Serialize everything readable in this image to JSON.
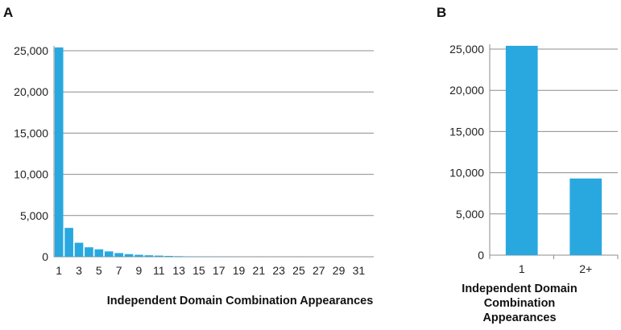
{
  "chart_data": [
    {
      "panel": "A",
      "type": "bar",
      "title": "",
      "xlabel": "Independent Domain Combination Appearances",
      "ylabel": "",
      "ylim": [
        0,
        25000
      ],
      "yticks": [
        0,
        5000,
        10000,
        15000,
        20000,
        25000
      ],
      "ytick_labels": [
        "0",
        "5,000",
        "10,000",
        "15,000",
        "20,000",
        "25,000"
      ],
      "categories": [
        "1",
        "2",
        "3",
        "4",
        "5",
        "6",
        "7",
        "8",
        "9",
        "10",
        "11",
        "12",
        "13",
        "14",
        "15",
        "16",
        "17",
        "18",
        "19",
        "20",
        "21",
        "22",
        "23",
        "24",
        "25",
        "26",
        "27",
        "28",
        "29",
        "30",
        "31",
        "32"
      ],
      "xtick_labels": [
        "1",
        "3",
        "5",
        "7",
        "9",
        "11",
        "13",
        "15",
        "17",
        "19",
        "21",
        "23",
        "25",
        "27",
        "29",
        "31"
      ],
      "values": [
        25400,
        3500,
        1700,
        1150,
        900,
        650,
        450,
        320,
        240,
        180,
        140,
        100,
        70,
        50,
        35,
        25,
        20,
        15,
        10,
        8,
        6,
        5,
        4,
        3,
        3,
        2,
        2,
        2,
        1,
        1,
        1,
        1
      ],
      "bar_color": "#29a8e0",
      "grid": true
    },
    {
      "panel": "B",
      "type": "bar",
      "title": "",
      "xlabel": "Independent Domain Combination Appearances",
      "ylabel": "",
      "ylim": [
        0,
        25000
      ],
      "yticks": [
        0,
        5000,
        10000,
        15000,
        20000,
        25000
      ],
      "ytick_labels": [
        "0",
        "5,000",
        "10,000",
        "15,000",
        "20,000",
        "25,000"
      ],
      "categories": [
        "1",
        "2+"
      ],
      "values": [
        25400,
        9300
      ],
      "bar_color": "#29a8e0",
      "grid": true
    }
  ]
}
